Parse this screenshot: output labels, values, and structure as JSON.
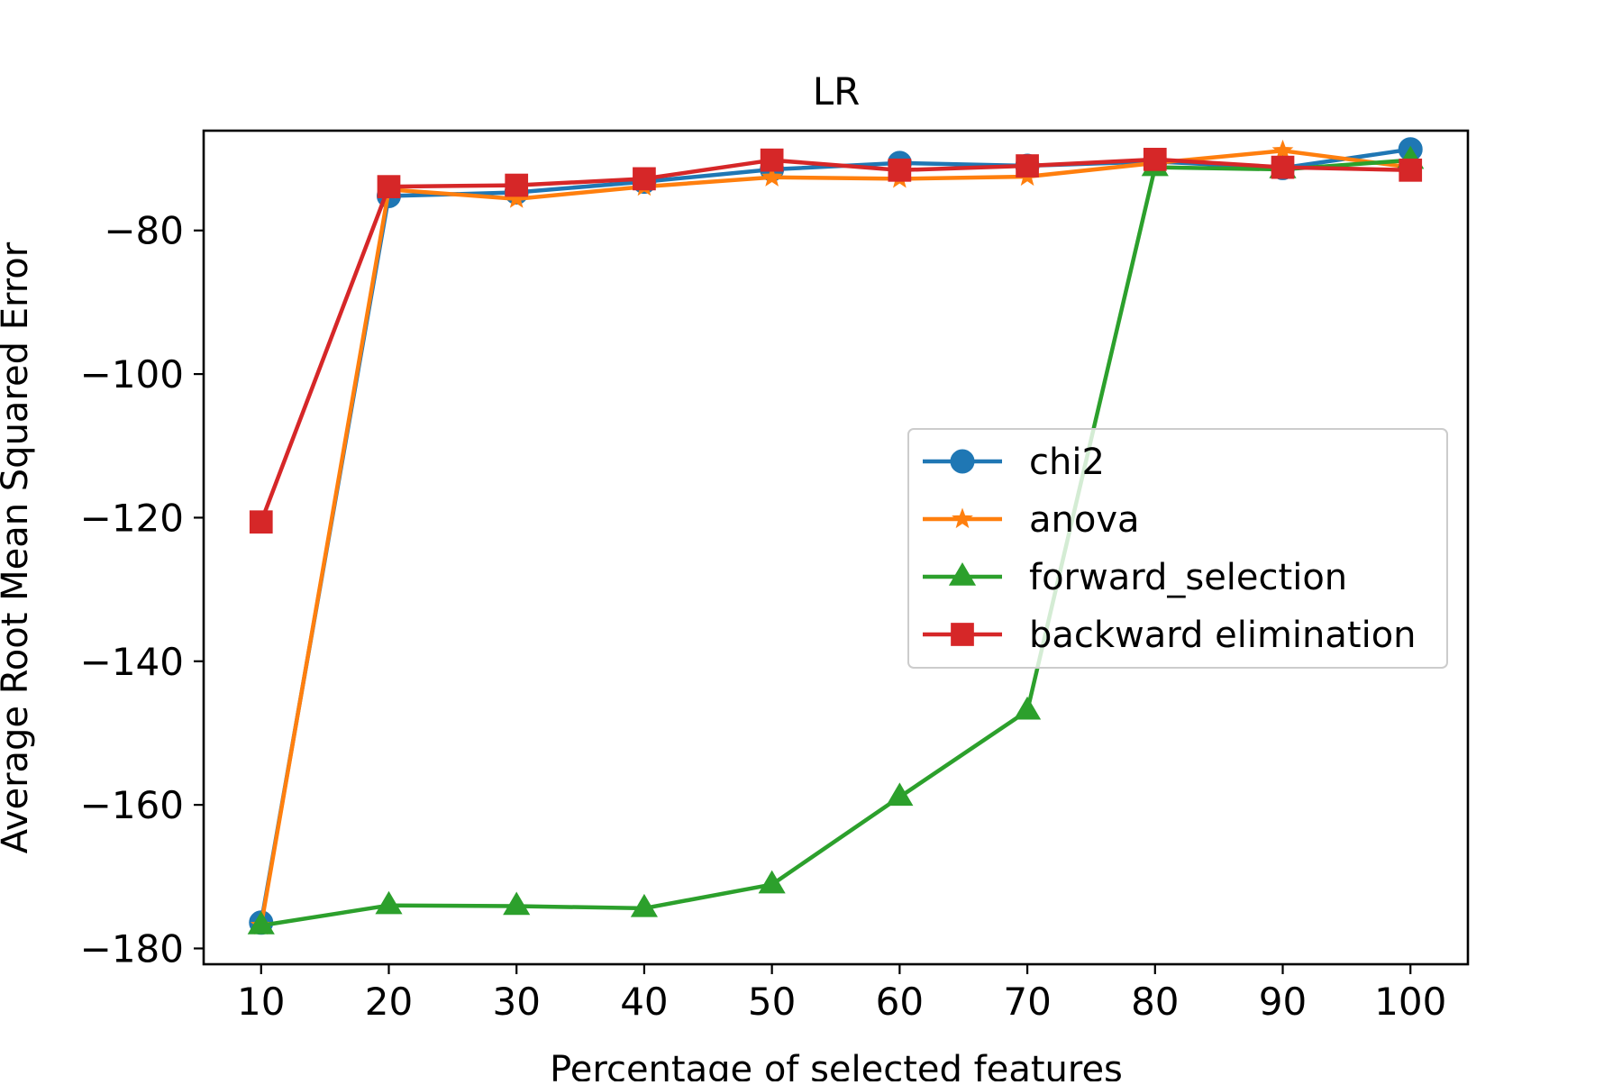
{
  "chart_data": {
    "type": "line",
    "title": "LR",
    "xlabel": "Percentage of selected features",
    "ylabel": "Average Root Mean Squared Error",
    "x": [
      10,
      20,
      30,
      40,
      50,
      60,
      70,
      80,
      90,
      100
    ],
    "x_ticks": [
      10,
      20,
      30,
      40,
      50,
      60,
      70,
      80,
      90,
      100
    ],
    "y_ticks": [
      -180,
      -160,
      -140,
      -120,
      -100,
      -80
    ],
    "y_tick_labels": [
      "−180",
      "−160",
      "−140",
      "−120",
      "−100",
      "−80"
    ],
    "xlim": [
      5.5,
      104.5
    ],
    "ylim": [
      -182.2,
      -66.1
    ],
    "grid": false,
    "legend_position": "center-right",
    "series": [
      {
        "name": "chi2",
        "color": "#1f77b4",
        "marker": "circle",
        "values": [
          -176.4,
          -75.2,
          -74.7,
          -73.2,
          -71.5,
          -70.6,
          -71.0,
          -70.4,
          -71.3,
          -68.7
        ]
      },
      {
        "name": "anova",
        "color": "#ff7f0e",
        "marker": "star",
        "values": [
          -176.8,
          -74.3,
          -75.6,
          -73.9,
          -72.6,
          -72.8,
          -72.5,
          -70.6,
          -68.9,
          -71.2
        ]
      },
      {
        "name": "forward_selection",
        "color": "#2ca02c",
        "marker": "triangle",
        "values": [
          -176.8,
          -174.0,
          -174.1,
          -174.4,
          -171.1,
          -158.9,
          -146.9,
          -71.2,
          -71.5,
          -70.2
        ]
      },
      {
        "name": "backward elimination",
        "color": "#d62728",
        "marker": "square",
        "values": [
          -120.6,
          -73.9,
          -73.7,
          -72.8,
          -70.2,
          -71.6,
          -71.0,
          -70.1,
          -71.2,
          -71.6
        ]
      }
    ]
  }
}
